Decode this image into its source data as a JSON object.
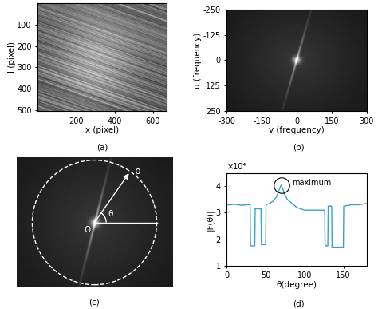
{
  "chart_data": [
    {
      "type": "image",
      "caption": "(a)",
      "xlabel": "x (pixel)",
      "ylabel": "l (pixel)",
      "xlim": [
        0,
        670
      ],
      "ylim": [
        505,
        0
      ],
      "xticks": [
        200,
        400,
        600
      ],
      "yticks": [
        100,
        200,
        300,
        400,
        500
      ]
    },
    {
      "type": "spectrum",
      "caption": "(b)",
      "xlabel": "v (frequency)",
      "ylabel": "u (frequency)",
      "xlim": [
        -300,
        300
      ],
      "ylim": [
        250,
        -250
      ],
      "xticks": [
        -300,
        -150,
        0,
        150,
        300
      ],
      "yticks": [
        -250,
        -125,
        0,
        125,
        250
      ]
    },
    {
      "type": "diagram",
      "caption": "(c)",
      "labels": {
        "origin": "O",
        "radius": "ρ",
        "angle": "θ"
      },
      "tick_labels": false
    },
    {
      "type": "line",
      "caption": "(d)",
      "xlabel": "θ(degree)",
      "ylabel": "|F(θ)|",
      "xlim": [
        0,
        180
      ],
      "ylim": [
        1,
        4.5
      ],
      "xticks": [
        0,
        50,
        100,
        150
      ],
      "yticks": [
        1,
        2,
        3,
        4
      ],
      "color": "#3aa0c8",
      "x": [
        0,
        5,
        10,
        15,
        20,
        25,
        30,
        30.5,
        36,
        36.5,
        44,
        44.5,
        50,
        50.5,
        55,
        60,
        64,
        67,
        70,
        72,
        75,
        78,
        82,
        86,
        90,
        100,
        110,
        120,
        126,
        126.5,
        130,
        130.5,
        135,
        135.5,
        150,
        150.5,
        160,
        170,
        180
      ],
      "values": [
        3.3,
        3.3,
        3.32,
        3.3,
        3.28,
        3.3,
        3.3,
        1.75,
        1.75,
        3.15,
        3.15,
        1.8,
        1.8,
        3.3,
        3.35,
        3.45,
        3.6,
        3.85,
        4.05,
        3.9,
        3.65,
        3.5,
        3.4,
        3.3,
        3.2,
        3.1,
        3.1,
        3.1,
        3.1,
        1.75,
        1.75,
        3.25,
        3.25,
        1.7,
        1.7,
        3.25,
        3.3,
        3.3,
        3.35
      ],
      "annotations": [
        {
          "text": "maximum",
          "x": 70,
          "y": 4.05
        },
        {
          "text": "×10⁴"
        }
      ]
    }
  ]
}
